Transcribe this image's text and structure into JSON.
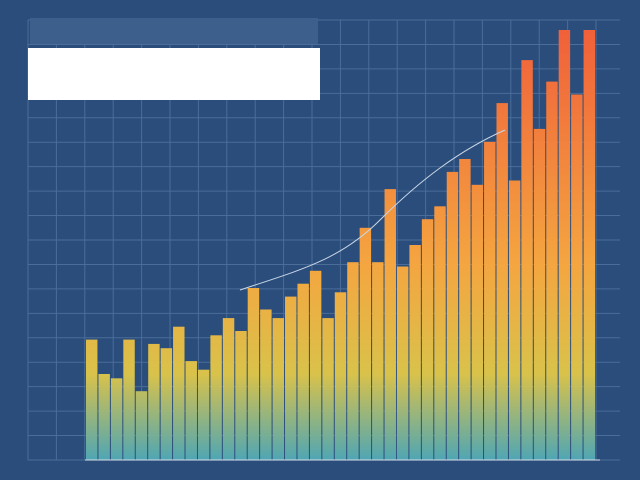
{
  "chart_data": {
    "type": "bar",
    "values": [
      28,
      20,
      19,
      28,
      16,
      27,
      26,
      31,
      23,
      21,
      29,
      33,
      30,
      40,
      35,
      33,
      38,
      41,
      44,
      33,
      39,
      46,
      54,
      46,
      63,
      45,
      50,
      56,
      59,
      67,
      70,
      64,
      74,
      83,
      65,
      93,
      77,
      88,
      100,
      85,
      100
    ],
    "color": "#f0603a",
    "ylim": [
      0,
      100
    ],
    "grid": true
  }
}
